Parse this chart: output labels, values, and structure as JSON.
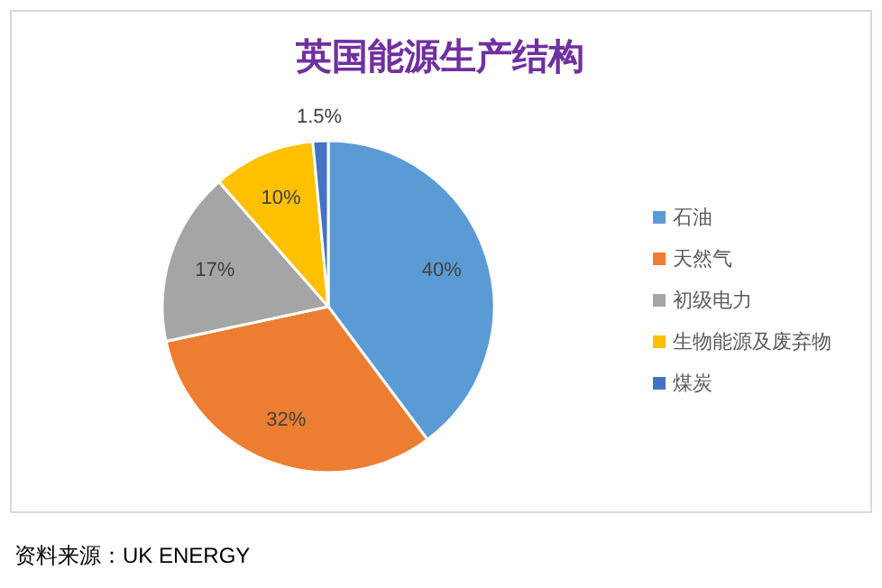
{
  "chart_data": {
    "type": "pie",
    "title": "英国能源生产结构",
    "categories": [
      "石油",
      "天然气",
      "初级电力",
      "生物能源及废弃物",
      "煤炭"
    ],
    "values": [
      40,
      32,
      17,
      10,
      1.5
    ],
    "colors": [
      "#5b9bd5",
      "#ed7d31",
      "#a5a5a5",
      "#ffc000",
      "#4472c4"
    ],
    "value_labels": [
      "40%",
      "32%",
      "17%",
      "10%",
      "1.5%"
    ],
    "legend": "right",
    "annotations": [
      "资料来源：UK ENERGY"
    ]
  }
}
